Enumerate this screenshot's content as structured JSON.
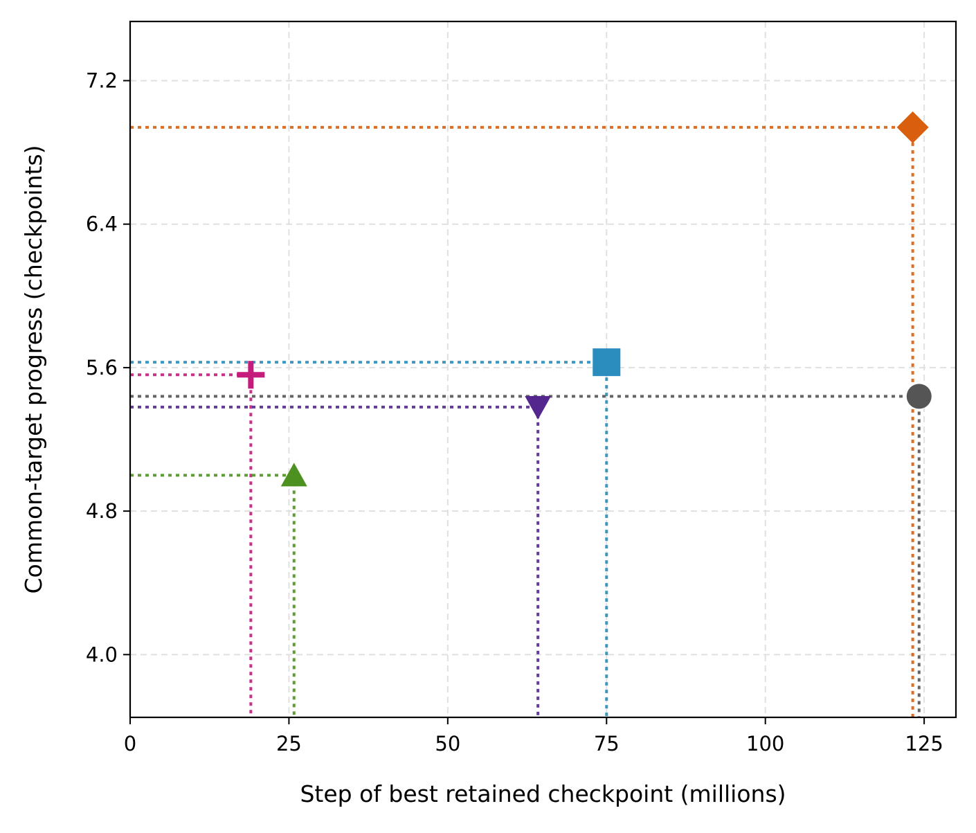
{
  "chart_data": {
    "type": "scatter",
    "title": "",
    "xlabel": "Step of best retained checkpoint (millions)",
    "ylabel": "Common-target progress (checkpoints)",
    "xlim": [
      0,
      130
    ],
    "ylim": [
      3.65,
      7.53
    ],
    "xticks": [
      0,
      25,
      50,
      75,
      100,
      125
    ],
    "xtick_labels": [
      "0",
      "25",
      "50",
      "75",
      "100",
      "125"
    ],
    "yticks": [
      4.0,
      4.8,
      5.6,
      6.4,
      7.2
    ],
    "ytick_labels": [
      "4.0",
      "4.8",
      "5.6",
      "6.4",
      "7.2"
    ],
    "grid": true,
    "guide_lines": "dotted drop lines from each point to both axes",
    "points": [
      {
        "x": 123.2,
        "y": 6.94,
        "marker": "diamond",
        "color": "#d95f0e"
      },
      {
        "x": 75.0,
        "y": 5.63,
        "marker": "square",
        "color": "#2b8cbe"
      },
      {
        "x": 19.0,
        "y": 5.56,
        "marker": "plus",
        "color": "#c51b7d"
      },
      {
        "x": 124.2,
        "y": 5.44,
        "marker": "circle",
        "color": "#555555"
      },
      {
        "x": 64.2,
        "y": 5.38,
        "marker": "triangle-down",
        "color": "#54278f"
      },
      {
        "x": 25.8,
        "y": 5.0,
        "marker": "triangle-up",
        "color": "#4d9221"
      }
    ]
  }
}
